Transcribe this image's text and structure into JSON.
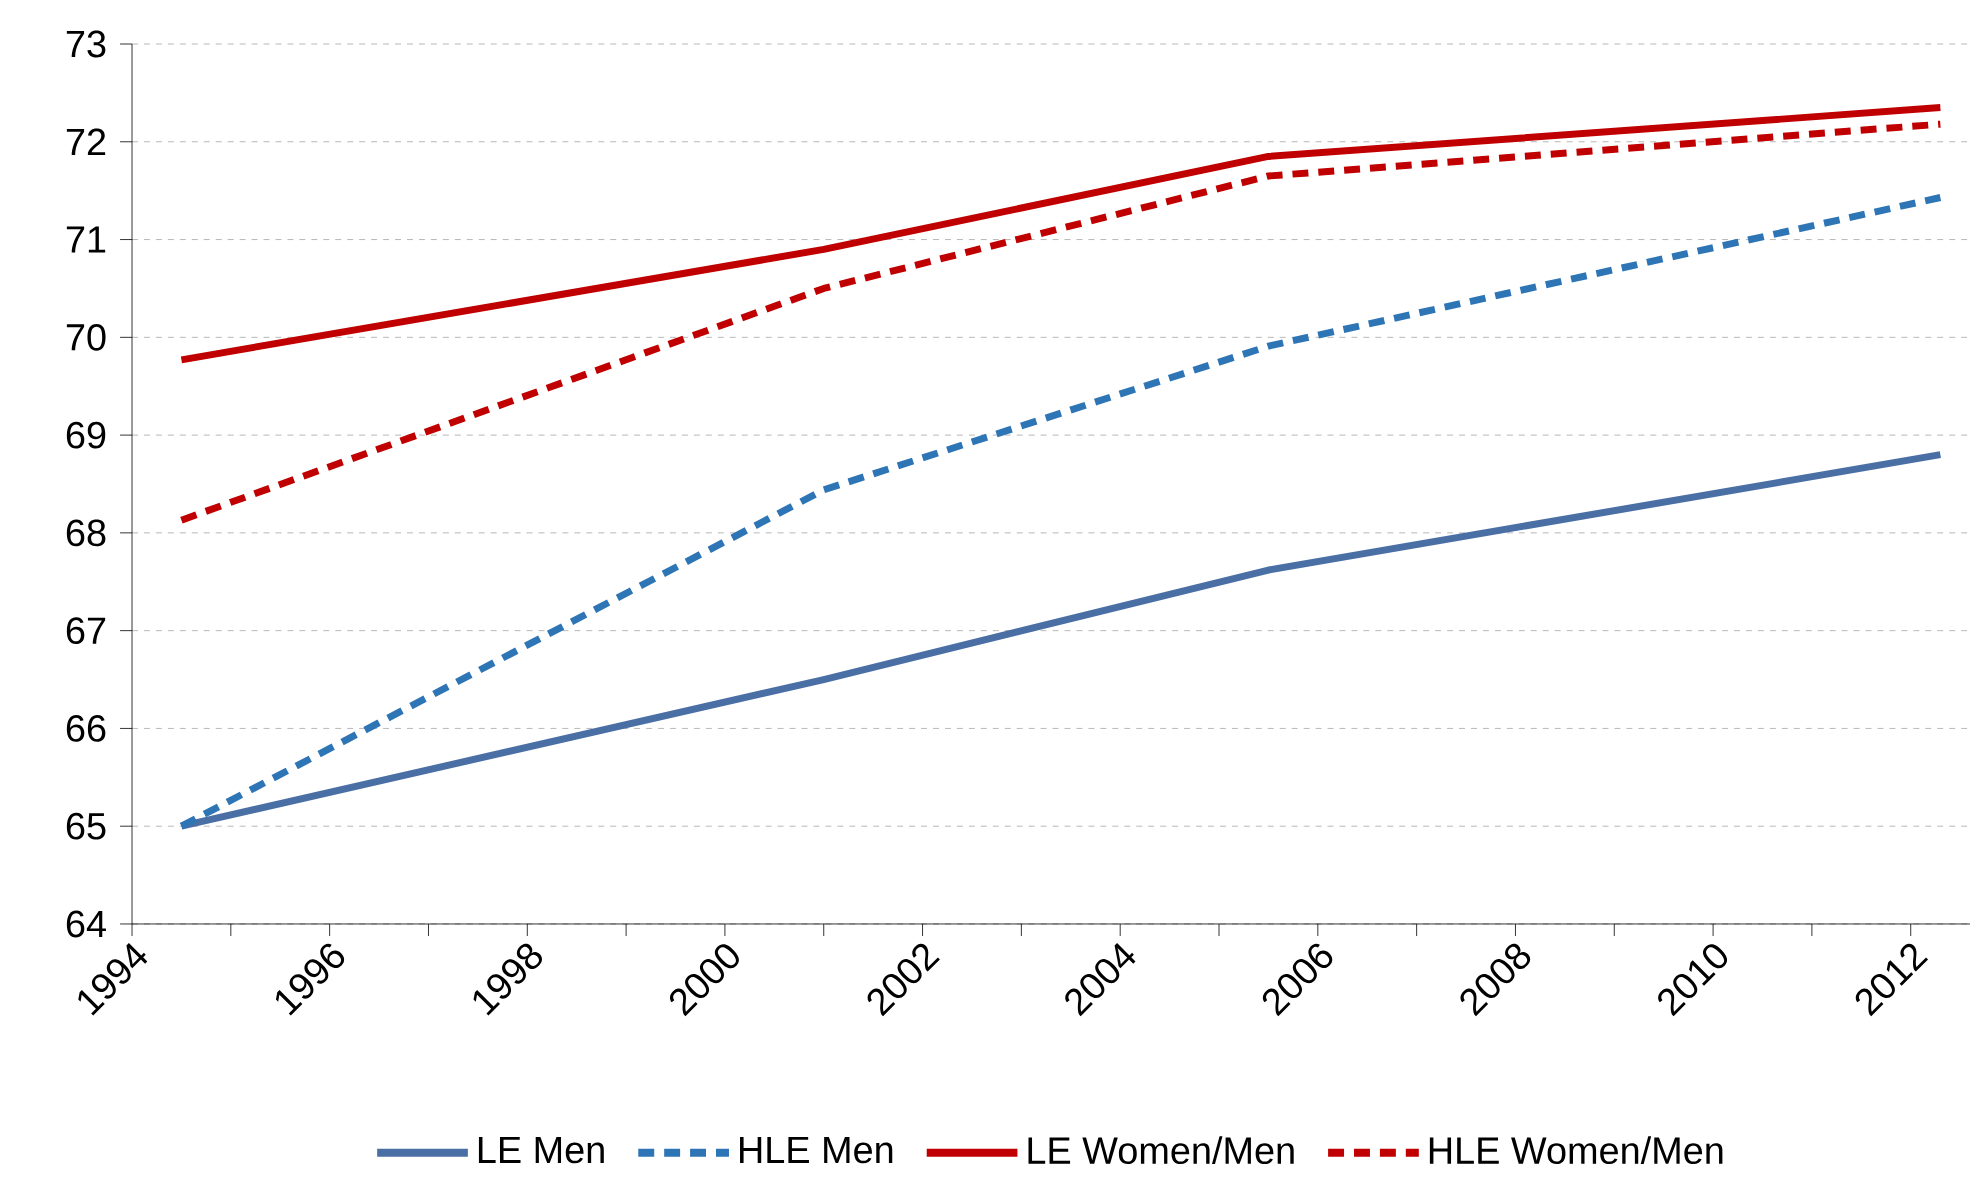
{
  "chart_data": {
    "type": "line",
    "x": [
      1994.5,
      2001,
      2005.5,
      2012.3
    ],
    "series": [
      {
        "name": "LE Men",
        "color": "#4a6fa5",
        "line_style": "solid",
        "values": [
          65.0,
          66.5,
          67.62,
          68.8
        ]
      },
      {
        "name": "HLE Men",
        "color": "#2e75b6",
        "line_style": "dashed",
        "values": [
          65.0,
          68.44,
          69.91,
          71.43
        ]
      },
      {
        "name": "LE  Women/Men",
        "color": "#c00000",
        "line_style": "solid",
        "values": [
          69.77,
          70.9,
          71.85,
          72.35
        ]
      },
      {
        "name": "HLE Women/Men",
        "color": "#c00000",
        "line_style": "dashed",
        "values": [
          68.13,
          70.5,
          71.65,
          72.18
        ]
      }
    ],
    "xlim": [
      1994,
      2012.6
    ],
    "xticks": [
      1994,
      {
        "value": 1995,
        "label": null
      },
      1996,
      {
        "value": 1997,
        "label": null
      },
      1998,
      {
        "value": 1999,
        "label": null
      },
      2000,
      {
        "value": 2001,
        "label": null
      },
      2002,
      {
        "value": 2003,
        "label": null
      },
      2004,
      {
        "value": 2005,
        "label": null
      },
      2006,
      {
        "value": 2007,
        "label": null
      },
      2008,
      {
        "value": 2009,
        "label": null
      },
      2010,
      {
        "value": 2011,
        "label": null
      },
      2012
    ],
    "ylim": [
      64,
      73
    ],
    "yticks": [
      64,
      65,
      66,
      67,
      68,
      69,
      70,
      71,
      72,
      73
    ],
    "grid": "y",
    "legend": "bottom",
    "marker": "none"
  }
}
